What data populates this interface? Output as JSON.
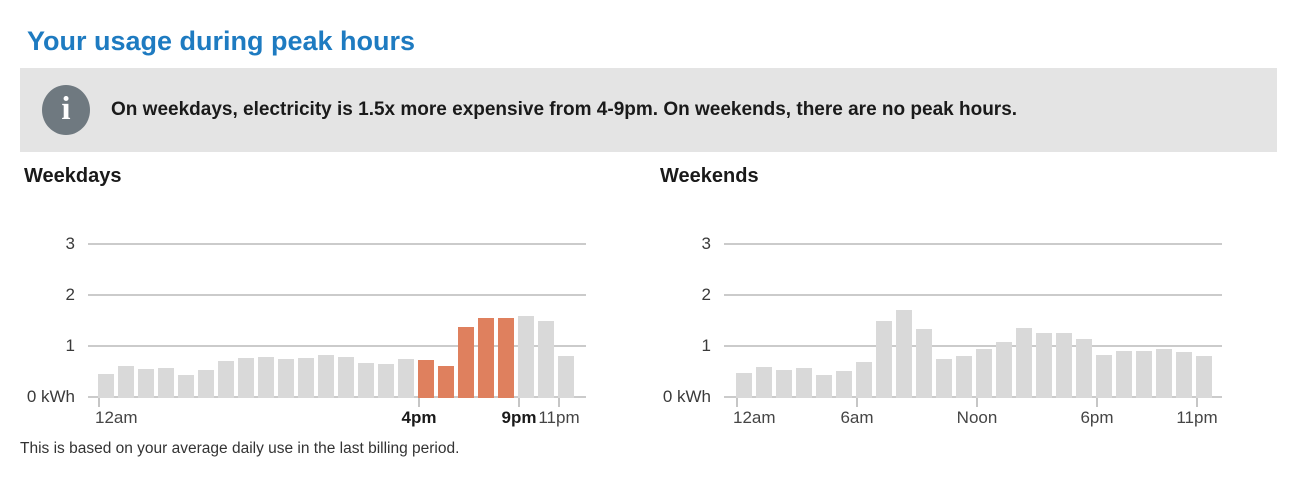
{
  "page": {
    "title": "Your usage during peak hours"
  },
  "banner": {
    "icon": "info-icon",
    "icon_glyph": "i",
    "text": "On weekdays, electricity is 1.5x more expensive from 4-9pm. On weekends, there are no peak hours.",
    "background_color": "#e4e4e4",
    "icon_color": "#6f7980"
  },
  "footer": {
    "note": "This is based on your average daily use in the last billing period."
  },
  "colors": {
    "title_blue": "#1e7bc1",
    "bar_default": "#d9d9d9",
    "bar_peak": "#df805e",
    "gridline": "#cbcbcb"
  },
  "chart_data": [
    {
      "type": "bar",
      "title": "Weekdays",
      "unit": "kWh",
      "categories": [
        "12am",
        "1am",
        "2am",
        "3am",
        "4am",
        "5am",
        "6am",
        "7am",
        "8am",
        "9am",
        "10am",
        "11am",
        "Noon",
        "1pm",
        "2pm",
        "3pm",
        "4pm",
        "5pm",
        "6pm",
        "7pm",
        "8pm",
        "9pm",
        "10pm",
        "11pm"
      ],
      "values": [
        0.48,
        0.63,
        0.56,
        0.58,
        0.45,
        0.54,
        0.72,
        0.79,
        0.8,
        0.77,
        0.78,
        0.85,
        0.8,
        0.68,
        0.67,
        0.77,
        0.75,
        0.63,
        1.4,
        1.57,
        1.57,
        1.6,
        1.5,
        0.82
      ],
      "peak_indices": [
        16,
        17,
        18,
        19,
        20
      ],
      "peak_window_label": "4-9pm",
      "ylim": [
        0,
        3.06
      ],
      "yticks": [
        {
          "value": 0,
          "label": "0 kWh"
        },
        {
          "value": 1,
          "label": "1"
        },
        {
          "value": 2,
          "label": "2"
        },
        {
          "value": 3,
          "label": "3"
        }
      ],
      "xticks": [
        {
          "index": 0,
          "label": "12am",
          "bold": false
        },
        {
          "index": 16,
          "label": "4pm",
          "bold": true
        },
        {
          "index": 21,
          "label": "9pm",
          "bold": true
        },
        {
          "index": 23,
          "label": "11pm",
          "bold": false
        }
      ],
      "grid": true,
      "legend": "none"
    },
    {
      "type": "bar",
      "title": "Weekends",
      "unit": "kWh",
      "categories": [
        "12am",
        "1am",
        "2am",
        "3am",
        "4am",
        "5am",
        "6am",
        "7am",
        "8am",
        "9am",
        "10am",
        "11am",
        "Noon",
        "1pm",
        "2pm",
        "3pm",
        "4pm",
        "5pm",
        "6pm",
        "7pm",
        "8pm",
        "9pm",
        "10pm",
        "11pm"
      ],
      "values": [
        0.49,
        0.61,
        0.55,
        0.59,
        0.45,
        0.53,
        0.7,
        1.5,
        1.72,
        1.35,
        0.77,
        0.82,
        0.97,
        1.1,
        1.38,
        1.27,
        1.28,
        1.15,
        0.84,
        0.93,
        0.93,
        0.97,
        0.9,
        0.83
      ],
      "peak_indices": [],
      "ylim": [
        0,
        3.06
      ],
      "yticks": [
        {
          "value": 0,
          "label": "0 kWh"
        },
        {
          "value": 1,
          "label": "1"
        },
        {
          "value": 2,
          "label": "2"
        },
        {
          "value": 3,
          "label": "3"
        }
      ],
      "xticks": [
        {
          "index": 0,
          "label": "12am",
          "bold": false
        },
        {
          "index": 6,
          "label": "6am",
          "bold": false
        },
        {
          "index": 12,
          "label": "Noon",
          "bold": false
        },
        {
          "index": 18,
          "label": "6pm",
          "bold": false
        },
        {
          "index": 23,
          "label": "11pm",
          "bold": false
        }
      ],
      "grid": true,
      "legend": "none"
    }
  ]
}
